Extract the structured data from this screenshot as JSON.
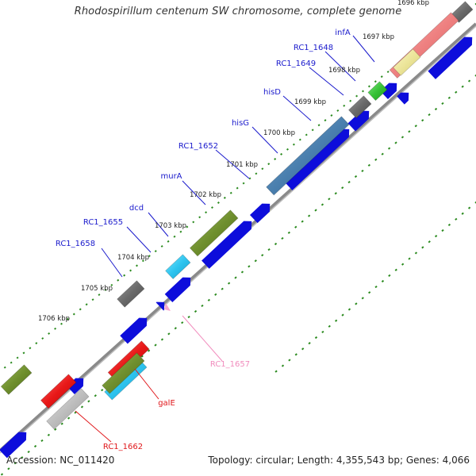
{
  "header": {
    "title": "Rhodospirillum centenum SW chromosome, complete genome"
  },
  "footer": {
    "accession": "Accession: NC_011420",
    "summary": "Topology: circular; Length: 4,355,543 bp; Genes: 4,066"
  },
  "kbp_ticks": [
    "1696 kbp",
    "1697 kbp",
    "1698 kbp",
    "1699 kbp",
    "1700 kbp",
    "1701 kbp",
    "1702 kbp",
    "1703 kbp",
    "1704 kbp",
    "1705 kbp",
    "1706 kbp"
  ],
  "gene_labels": [
    {
      "text": "infA",
      "color": "#1a1acc"
    },
    {
      "text": "RC1_1648",
      "color": "#1a1acc"
    },
    {
      "text": "RC1_1649",
      "color": "#1a1acc"
    },
    {
      "text": "hisD",
      "color": "#1a1acc"
    },
    {
      "text": "hisG",
      "color": "#1a1acc"
    },
    {
      "text": "RC1_1652",
      "color": "#1a1acc"
    },
    {
      "text": "murA",
      "color": "#1a1acc"
    },
    {
      "text": "dcd",
      "color": "#1a1acc"
    },
    {
      "text": "RC1_1655",
      "color": "#1a1acc"
    },
    {
      "text": "RC1_1658",
      "color": "#1a1acc"
    },
    {
      "text": "RC1_1657",
      "color": "#f18cbd"
    },
    {
      "text": "galE",
      "color": "#e0161a"
    },
    {
      "text": "RC1_1662",
      "color": "#e0161a"
    }
  ],
  "colors": {
    "backbone": "#8a8a8a",
    "cds": "#0d0ddb",
    "tick_dots": "#2a8a1e",
    "gene_outline": "#555555"
  }
}
